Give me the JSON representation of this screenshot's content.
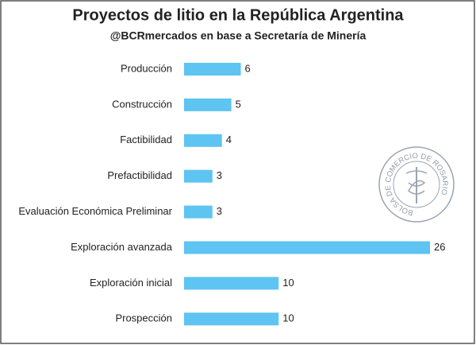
{
  "chart_data": {
    "type": "hbar",
    "title": "Proyectos de litio en la República Argentina",
    "subtitle": "@BCRmercados en base a Secretaría de Minería",
    "categories": [
      "Producción",
      "Construcción",
      "Factibilidad",
      "Prefactibilidad",
      "Evaluación Económica Preliminar",
      "Exploración avanzada",
      "Exploración inicial",
      "Prospección"
    ],
    "values": [
      6,
      5,
      4,
      3,
      3,
      26,
      10,
      10
    ],
    "color": "#5ec4f2",
    "logo_text": "BOLSA DE COMERCIO DE ROSARIO"
  }
}
